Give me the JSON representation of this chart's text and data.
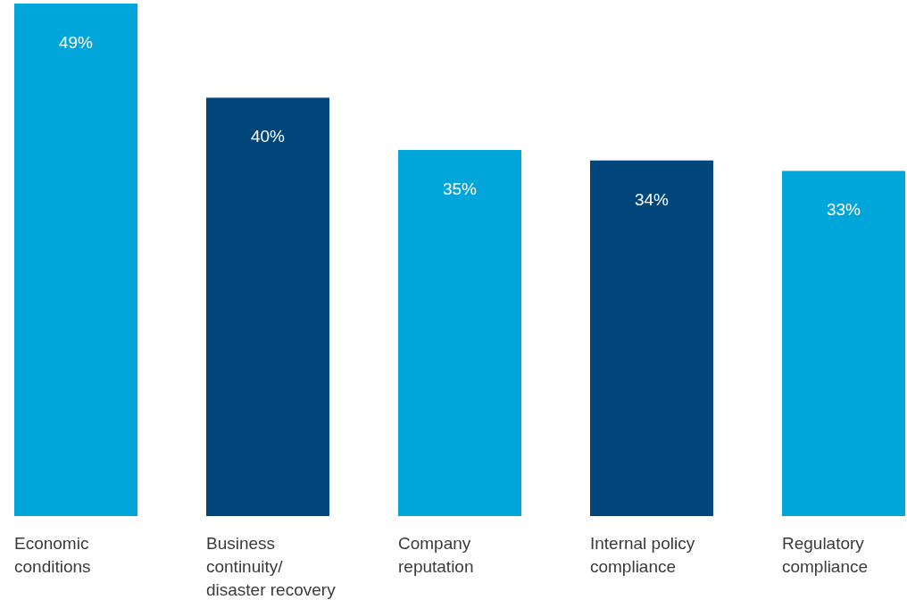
{
  "chart_data": {
    "type": "bar",
    "categories": [
      "Economic conditions",
      "Business continuity/disaster recovery",
      "Company reputation",
      "Internal policy compliance",
      "Regulatory compliance"
    ],
    "values": [
      49,
      40,
      35,
      34,
      33
    ],
    "value_labels": [
      "49%",
      "40%",
      "35%",
      "34%",
      "33%"
    ],
    "colors": [
      "#00a6d9",
      "#00467a",
      "#00a6d9",
      "#00467a",
      "#00a6d9"
    ]
  }
}
